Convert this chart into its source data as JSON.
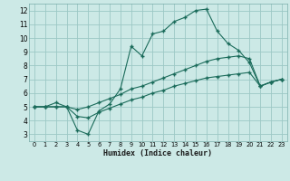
{
  "xlabel": "Humidex (Indice chaleur)",
  "background_color": "#cce9e6",
  "grid_color": "#9cc8c5",
  "line_color": "#1a6b5a",
  "xlim": [
    -0.5,
    23.5
  ],
  "ylim": [
    2.5,
    12.5
  ],
  "xticks": [
    0,
    1,
    2,
    3,
    4,
    5,
    6,
    7,
    8,
    9,
    10,
    11,
    12,
    13,
    14,
    15,
    16,
    17,
    18,
    19,
    20,
    21,
    22,
    23
  ],
  "yticks": [
    3,
    4,
    5,
    6,
    7,
    8,
    9,
    10,
    11,
    12
  ],
  "series1_y": [
    5.0,
    5.0,
    5.3,
    5.0,
    3.3,
    3.0,
    4.7,
    5.2,
    6.3,
    9.4,
    8.7,
    10.3,
    10.5,
    11.2,
    11.5,
    12.0,
    12.1,
    10.5,
    9.6,
    9.1,
    8.2,
    6.5,
    6.8,
    7.0
  ],
  "series2_y": [
    5.0,
    5.0,
    5.0,
    5.0,
    4.8,
    5.0,
    5.3,
    5.6,
    5.9,
    6.3,
    6.5,
    6.8,
    7.1,
    7.4,
    7.7,
    8.0,
    8.3,
    8.5,
    8.6,
    8.7,
    8.5,
    6.5,
    6.8,
    7.0
  ],
  "series3_y": [
    5.0,
    5.0,
    5.0,
    5.0,
    4.3,
    4.2,
    4.6,
    4.9,
    5.2,
    5.5,
    5.7,
    6.0,
    6.2,
    6.5,
    6.7,
    6.9,
    7.1,
    7.2,
    7.3,
    7.4,
    7.5,
    6.5,
    6.8,
    7.0
  ]
}
